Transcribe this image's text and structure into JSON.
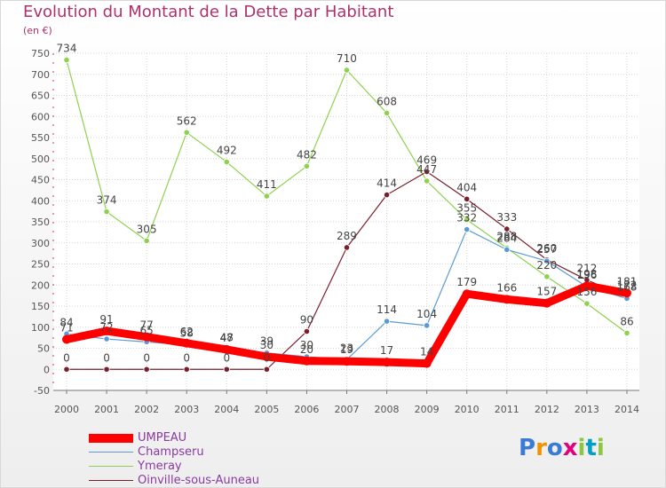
{
  "title": "Evolution du Montant de la Dette par Habitant",
  "subtitle": "(en €)",
  "chart_data": {
    "type": "line",
    "title": "Evolution du Montant de la Dette par Habitant",
    "ylabel": "(en €)",
    "x": [
      "2000",
      "2001",
      "2002",
      "2003",
      "2004",
      "2005",
      "2006",
      "2007",
      "2008",
      "2009",
      "2010",
      "2011",
      "2012",
      "2013",
      "2014"
    ],
    "ylim": [
      -50,
      750
    ],
    "yticks": [
      -50,
      0,
      50,
      100,
      150,
      200,
      250,
      300,
      350,
      400,
      450,
      500,
      550,
      600,
      650,
      700,
      750
    ],
    "grid": true,
    "legend_position": "bottom-left",
    "series": [
      {
        "name": "UMPEAU",
        "color": "#ff0000",
        "values": [
          71,
          91,
          77,
          62,
          47,
          30,
          20,
          19,
          17,
          14,
          179,
          166,
          157,
          198,
          181
        ],
        "labels": [
          "71",
          "91",
          "77",
          "62",
          "47",
          "30",
          "20",
          "19",
          "17",
          "14",
          "179",
          "166",
          "157",
          "198",
          "181"
        ]
      },
      {
        "name": "Champseru",
        "color": "#5b9bd5",
        "values": [
          84,
          72,
          65,
          58,
          48,
          39,
          30,
          23,
          114,
          104,
          332,
          284,
          257,
          196,
          168
        ],
        "labels": [
          "84",
          "72",
          "65",
          "58",
          "48",
          "39",
          "30",
          "23",
          "114",
          "104",
          "332",
          "284",
          "257",
          "196",
          "168"
        ]
      },
      {
        "name": "Ymeray",
        "color": "#8fd14f",
        "values": [
          734,
          374,
          305,
          562,
          492,
          411,
          482,
          710,
          608,
          447,
          355,
          288,
          220,
          156,
          86
        ],
        "labels": [
          "734",
          "374",
          "305",
          "562",
          "492",
          "411",
          "482",
          "710",
          "608",
          "447",
          "355",
          "288",
          "220",
          "156",
          "86"
        ]
      },
      {
        "name": "Oinville-sous-Auneau",
        "color": "#7a1f2b",
        "values": [
          0,
          0,
          0,
          0,
          0,
          0,
          90,
          289,
          414,
          469,
          404,
          333,
          260,
          212,
          172
        ],
        "labels": [
          "0",
          "0",
          "0",
          "0",
          "0",
          "0",
          "90",
          "289",
          "414",
          "469",
          "404",
          "333",
          "260",
          "212",
          "172"
        ]
      }
    ]
  },
  "logo": {
    "letters": [
      "P",
      "r",
      "o",
      "x",
      "i",
      "t",
      "i"
    ],
    "colors": [
      "#3a7bd5",
      "#f39200",
      "#3a7bd5",
      "#e4007c",
      "#8dc63f",
      "#00a0c6",
      "#8dc63f"
    ]
  }
}
